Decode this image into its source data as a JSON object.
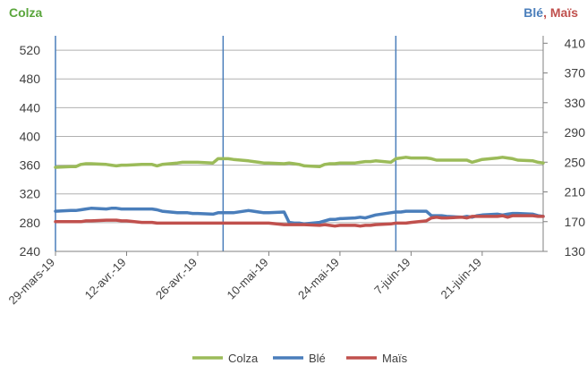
{
  "chart_data": {
    "type": "line",
    "left_axis_title": "Colza",
    "right_axis_title_parts": [
      {
        "text": "Blé",
        "color": "#4a7ebb"
      },
      {
        "text": ", ",
        "color": "#c0504d"
      },
      {
        "text": "Maïs",
        "color": "#c0504d"
      }
    ],
    "left_axis_color": "#5aa63c",
    "ylim_left": [
      240,
      540
    ],
    "ylim_right": [
      130,
      420
    ],
    "yticks_left": [
      240,
      280,
      320,
      360,
      400,
      440,
      480,
      520
    ],
    "yticks_right": [
      130,
      170,
      210,
      250,
      290,
      330,
      370,
      410
    ],
    "x_range": [
      "2019-03-29",
      "2019-07-03"
    ],
    "x_tick_labels": [
      "29-mars-19",
      "12-avr.-19",
      "26-avr.-19",
      "10-mai-19",
      "24-mai-19",
      "7-juin-19",
      "21-juin-19"
    ],
    "x_tick_dates": [
      "2019-03-29",
      "2019-04-12",
      "2019-04-26",
      "2019-05-10",
      "2019-05-24",
      "2019-06-07",
      "2019-06-21"
    ],
    "vertical_markers": [
      "2019-03-29",
      "2019-05-01",
      "2019-06-04"
    ],
    "grid": "horizontal",
    "legend_position": "bottom",
    "series": [
      {
        "name": "Colza",
        "axis": "left",
        "color": "#9bbb59",
        "points": [
          [
            "2019-03-29",
            357
          ],
          [
            "2019-04-01",
            358
          ],
          [
            "2019-04-02",
            358
          ],
          [
            "2019-04-03",
            361
          ],
          [
            "2019-04-04",
            362
          ],
          [
            "2019-04-05",
            362
          ],
          [
            "2019-04-08",
            361
          ],
          [
            "2019-04-09",
            360
          ],
          [
            "2019-04-10",
            359
          ],
          [
            "2019-04-11",
            360
          ],
          [
            "2019-04-12",
            360
          ],
          [
            "2019-04-15",
            361
          ],
          [
            "2019-04-16",
            361
          ],
          [
            "2019-04-17",
            361
          ],
          [
            "2019-04-18",
            359
          ],
          [
            "2019-04-19",
            361
          ],
          [
            "2019-04-22",
            363
          ],
          [
            "2019-04-23",
            364
          ],
          [
            "2019-04-24",
            364
          ],
          [
            "2019-04-25",
            364
          ],
          [
            "2019-04-26",
            364
          ],
          [
            "2019-04-29",
            363
          ],
          [
            "2019-04-30",
            369
          ],
          [
            "2019-05-01",
            369
          ],
          [
            "2019-05-02",
            369
          ],
          [
            "2019-05-03",
            368
          ],
          [
            "2019-05-06",
            366
          ],
          [
            "2019-05-07",
            365
          ],
          [
            "2019-05-08",
            364
          ],
          [
            "2019-05-09",
            363
          ],
          [
            "2019-05-10",
            363
          ],
          [
            "2019-05-13",
            362
          ],
          [
            "2019-05-14",
            363
          ],
          [
            "2019-05-15",
            362
          ],
          [
            "2019-05-16",
            361
          ],
          [
            "2019-05-17",
            359
          ],
          [
            "2019-05-20",
            358
          ],
          [
            "2019-05-21",
            361
          ],
          [
            "2019-05-22",
            362
          ],
          [
            "2019-05-23",
            362
          ],
          [
            "2019-05-24",
            363
          ],
          [
            "2019-05-27",
            363
          ],
          [
            "2019-05-28",
            364
          ],
          [
            "2019-05-29",
            365
          ],
          [
            "2019-05-30",
            365
          ],
          [
            "2019-05-31",
            366
          ],
          [
            "2019-06-03",
            364
          ],
          [
            "2019-06-04",
            369
          ],
          [
            "2019-06-05",
            370
          ],
          [
            "2019-06-06",
            371
          ],
          [
            "2019-06-07",
            370
          ],
          [
            "2019-06-10",
            370
          ],
          [
            "2019-06-11",
            369
          ],
          [
            "2019-06-12",
            367
          ],
          [
            "2019-06-13",
            367
          ],
          [
            "2019-06-14",
            367
          ],
          [
            "2019-06-17",
            367
          ],
          [
            "2019-06-18",
            367
          ],
          [
            "2019-06-19",
            364
          ],
          [
            "2019-06-20",
            366
          ],
          [
            "2019-06-21",
            368
          ],
          [
            "2019-06-24",
            370
          ],
          [
            "2019-06-25",
            371
          ],
          [
            "2019-06-26",
            370
          ],
          [
            "2019-06-27",
            369
          ],
          [
            "2019-06-28",
            367
          ],
          [
            "2019-07-01",
            366
          ],
          [
            "2019-07-02",
            364
          ],
          [
            "2019-07-03",
            363
          ]
        ]
      },
      {
        "name": "Blé",
        "axis": "right",
        "color": "#4a7ebb",
        "points": [
          [
            "2019-03-29",
            184
          ],
          [
            "2019-04-01",
            185
          ],
          [
            "2019-04-02",
            185
          ],
          [
            "2019-04-03",
            186
          ],
          [
            "2019-04-04",
            187
          ],
          [
            "2019-04-05",
            188
          ],
          [
            "2019-04-08",
            187
          ],
          [
            "2019-04-09",
            188
          ],
          [
            "2019-04-10",
            188
          ],
          [
            "2019-04-11",
            187
          ],
          [
            "2019-04-12",
            187
          ],
          [
            "2019-04-15",
            187
          ],
          [
            "2019-04-16",
            187
          ],
          [
            "2019-04-17",
            187
          ],
          [
            "2019-04-18",
            186
          ],
          [
            "2019-04-19",
            184
          ],
          [
            "2019-04-22",
            182
          ],
          [
            "2019-04-23",
            182
          ],
          [
            "2019-04-24",
            182
          ],
          [
            "2019-04-25",
            181
          ],
          [
            "2019-04-26",
            181
          ],
          [
            "2019-04-29",
            180
          ],
          [
            "2019-04-30",
            182
          ],
          [
            "2019-05-01",
            182
          ],
          [
            "2019-05-02",
            182
          ],
          [
            "2019-05-03",
            182
          ],
          [
            "2019-05-06",
            185
          ],
          [
            "2019-05-07",
            184
          ],
          [
            "2019-05-08",
            183
          ],
          [
            "2019-05-09",
            182
          ],
          [
            "2019-05-10",
            182
          ],
          [
            "2019-05-13",
            183
          ],
          [
            "2019-05-14",
            169
          ],
          [
            "2019-05-15",
            168
          ],
          [
            "2019-05-16",
            168
          ],
          [
            "2019-05-17",
            167
          ],
          [
            "2019-05-20",
            169
          ],
          [
            "2019-05-21",
            171
          ],
          [
            "2019-05-22",
            173
          ],
          [
            "2019-05-23",
            173
          ],
          [
            "2019-05-24",
            174
          ],
          [
            "2019-05-27",
            175
          ],
          [
            "2019-05-28",
            176
          ],
          [
            "2019-05-29",
            175
          ],
          [
            "2019-05-30",
            177
          ],
          [
            "2019-05-31",
            179
          ],
          [
            "2019-06-03",
            182
          ],
          [
            "2019-06-04",
            183
          ],
          [
            "2019-06-05",
            183
          ],
          [
            "2019-06-06",
            184
          ],
          [
            "2019-06-07",
            184
          ],
          [
            "2019-06-10",
            184
          ],
          [
            "2019-06-11",
            178
          ],
          [
            "2019-06-12",
            178
          ],
          [
            "2019-06-13",
            178
          ],
          [
            "2019-06-14",
            177
          ],
          [
            "2019-06-17",
            176
          ],
          [
            "2019-06-18",
            177
          ],
          [
            "2019-06-19",
            176
          ],
          [
            "2019-06-20",
            178
          ],
          [
            "2019-06-21",
            179
          ],
          [
            "2019-06-24",
            180
          ],
          [
            "2019-06-25",
            179
          ],
          [
            "2019-06-26",
            180
          ],
          [
            "2019-06-27",
            181
          ],
          [
            "2019-06-28",
            181
          ],
          [
            "2019-07-01",
            180
          ],
          [
            "2019-07-02",
            178
          ],
          [
            "2019-07-03",
            177
          ]
        ]
      },
      {
        "name": "Maïs",
        "axis": "right",
        "color": "#c0504d",
        "points": [
          [
            "2019-03-29",
            170
          ],
          [
            "2019-04-01",
            170
          ],
          [
            "2019-04-02",
            170
          ],
          [
            "2019-04-03",
            170
          ],
          [
            "2019-04-04",
            171
          ],
          [
            "2019-04-05",
            171
          ],
          [
            "2019-04-08",
            172
          ],
          [
            "2019-04-09",
            172
          ],
          [
            "2019-04-10",
            172
          ],
          [
            "2019-04-11",
            171
          ],
          [
            "2019-04-12",
            171
          ],
          [
            "2019-04-15",
            169
          ],
          [
            "2019-04-16",
            169
          ],
          [
            "2019-04-17",
            169
          ],
          [
            "2019-04-18",
            168
          ],
          [
            "2019-04-19",
            168
          ],
          [
            "2019-04-22",
            168
          ],
          [
            "2019-04-23",
            168
          ],
          [
            "2019-04-24",
            168
          ],
          [
            "2019-04-25",
            168
          ],
          [
            "2019-04-26",
            168
          ],
          [
            "2019-04-29",
            168
          ],
          [
            "2019-04-30",
            168
          ],
          [
            "2019-05-01",
            168
          ],
          [
            "2019-05-02",
            168
          ],
          [
            "2019-05-03",
            168
          ],
          [
            "2019-05-06",
            168
          ],
          [
            "2019-05-07",
            168
          ],
          [
            "2019-05-08",
            168
          ],
          [
            "2019-05-09",
            168
          ],
          [
            "2019-05-10",
            168
          ],
          [
            "2019-05-13",
            166
          ],
          [
            "2019-05-14",
            166
          ],
          [
            "2019-05-15",
            166
          ],
          [
            "2019-05-16",
            166
          ],
          [
            "2019-05-17",
            166
          ],
          [
            "2019-05-20",
            165
          ],
          [
            "2019-05-21",
            166
          ],
          [
            "2019-05-22",
            165
          ],
          [
            "2019-05-23",
            164
          ],
          [
            "2019-05-24",
            165
          ],
          [
            "2019-05-27",
            165
          ],
          [
            "2019-05-28",
            164
          ],
          [
            "2019-05-29",
            165
          ],
          [
            "2019-05-30",
            165
          ],
          [
            "2019-05-31",
            166
          ],
          [
            "2019-06-03",
            167
          ],
          [
            "2019-06-04",
            168
          ],
          [
            "2019-06-05",
            168
          ],
          [
            "2019-06-06",
            168
          ],
          [
            "2019-06-07",
            169
          ],
          [
            "2019-06-10",
            171
          ],
          [
            "2019-06-11",
            175
          ],
          [
            "2019-06-12",
            176
          ],
          [
            "2019-06-13",
            175
          ],
          [
            "2019-06-14",
            175
          ],
          [
            "2019-06-17",
            176
          ],
          [
            "2019-06-18",
            175
          ],
          [
            "2019-06-19",
            177
          ],
          [
            "2019-06-20",
            177
          ],
          [
            "2019-06-21",
            177
          ],
          [
            "2019-06-24",
            177
          ],
          [
            "2019-06-25",
            178
          ],
          [
            "2019-06-26",
            176
          ],
          [
            "2019-06-27",
            178
          ],
          [
            "2019-06-28",
            178
          ],
          [
            "2019-07-01",
            178
          ],
          [
            "2019-07-02",
            177
          ],
          [
            "2019-07-03",
            177
          ]
        ]
      }
    ]
  }
}
